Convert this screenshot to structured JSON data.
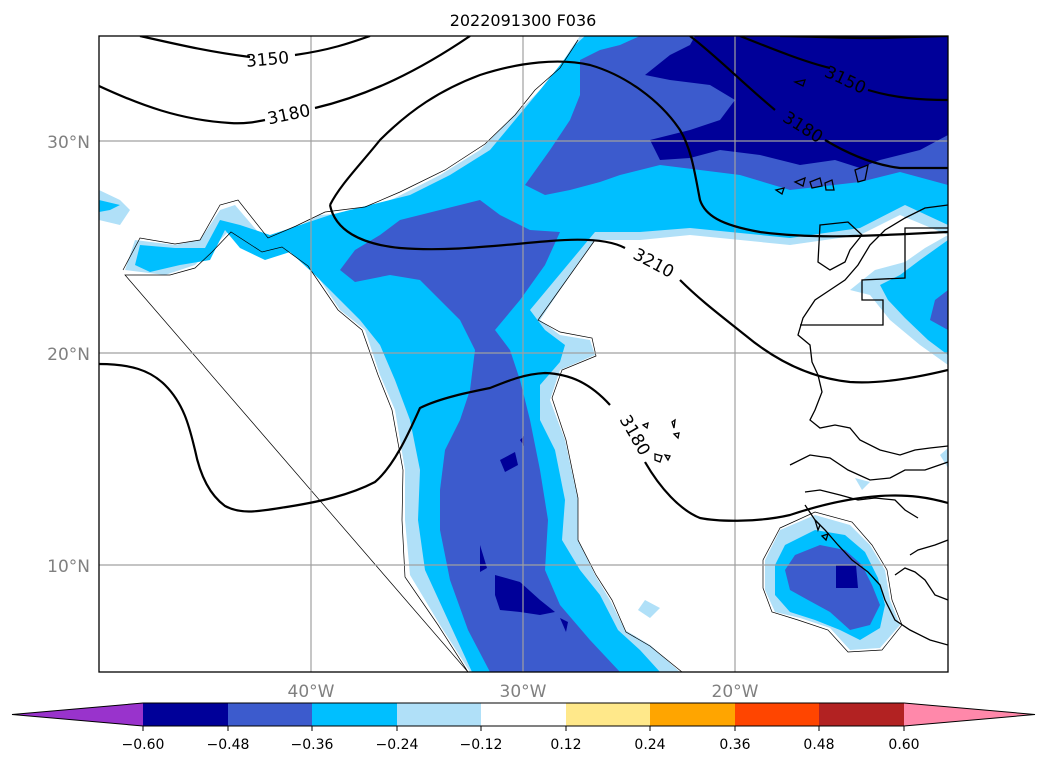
{
  "title": "2022091300 F036",
  "lat_labels": [
    "30°N",
    "20°N",
    "10°N"
  ],
  "lon_labels": [
    "40°W",
    "30°W",
    "20°W"
  ],
  "contour_labels": [
    "3150",
    "3180",
    "3210",
    "3180",
    "3150",
    "3180"
  ],
  "colorbar": {
    "tick_labels": [
      "−0.60",
      "−0.48",
      "−0.36",
      "−0.24",
      "−0.12",
      "0.12",
      "0.24",
      "0.36",
      "0.48",
      "0.60"
    ],
    "colors": [
      "#9933cc",
      "#000099",
      "#3c5bcd",
      "#00bfff",
      "#b0e0f8",
      "#ffffff",
      "#ffe88a",
      "#ffa500",
      "#ff4500",
      "#b22222",
      "#ff88aa",
      "#ff88aa"
    ]
  },
  "map": {
    "lon_range": [
      -50,
      -10
    ],
    "lat_range": [
      5,
      35
    ],
    "gridlines": true,
    "fill_colors": {
      "light": "#b0e0f8",
      "cyan": "#00bfff",
      "blue": "#3c5bcd",
      "navy": "#000099"
    }
  }
}
